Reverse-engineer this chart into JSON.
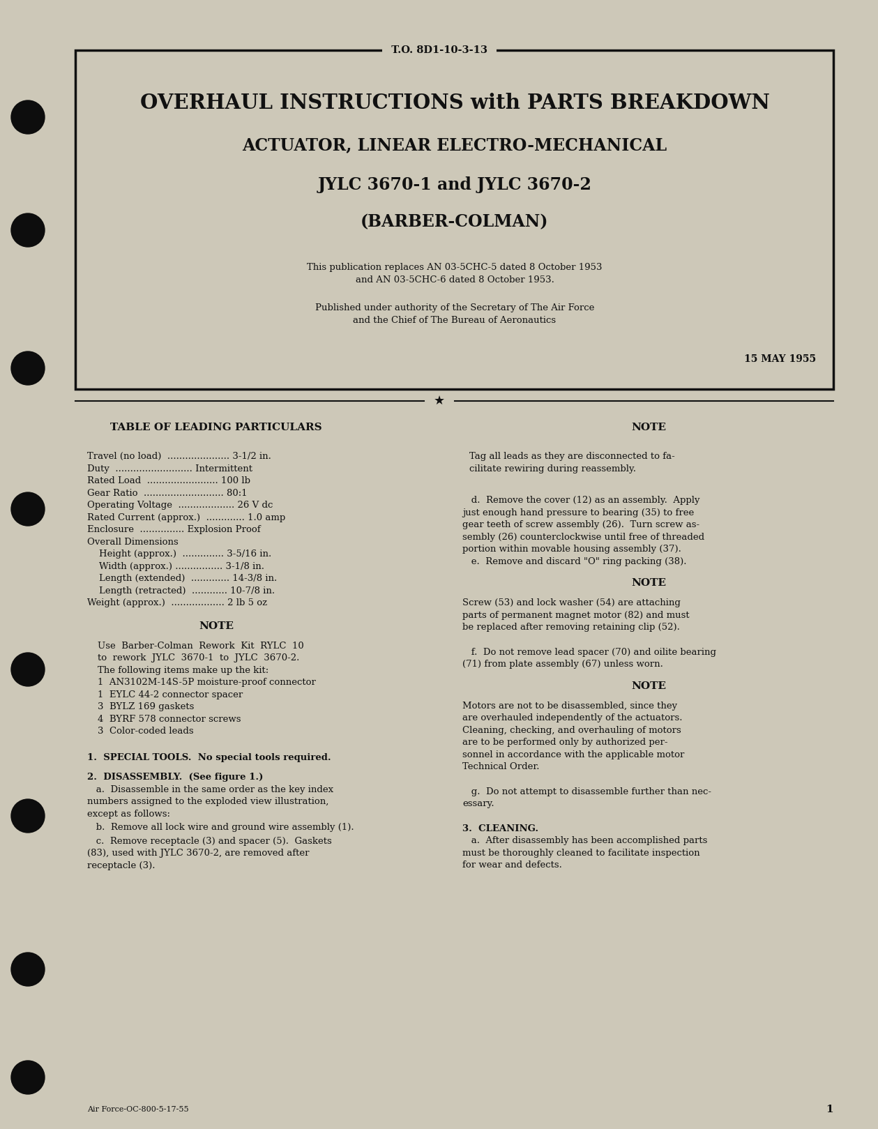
{
  "bg_color": "#cdc8b8",
  "border_color": "#111111",
  "text_color": "#111111",
  "header_label": "T.O. 8D1-10-3-13",
  "title1": "OVERHAUL INSTRUCTIONS with PARTS BREAKDOWN",
  "title2": "ACTUATOR, LINEAR ELECTRO-MECHANICAL",
  "title3": "JYLC 3670-1 and JYLC 3670-2",
  "title4": "(BARBER-COLMAN)",
  "pub_line1": "This publication replaces AN 03-5CHC-5 dated 8 October 1953",
  "pub_line2": "and AN 03-5CHC-6 dated 8 October 1953.",
  "authority_line1": "Published under authority of the Secretary of The Air Force",
  "authority_line2": "and the Chief of The Bureau of Aeronautics",
  "date": "15 MAY 1955",
  "table_heading": "TABLE OF LEADING PARTICULARS",
  "note_heading": "NOTE",
  "particulars": [
    "Travel (no load)  ..................... 3-1/2 in.",
    "Duty  .......................... Intermittent",
    "Rated Load  ........................ 100 lb",
    "Gear Ratio  ........................... 80:1",
    "Operating Voltage  ................... 26 V dc",
    "Rated Current (approx.)  ............. 1.0 amp",
    "Enclosure  ............... Explosion Proof",
    "Overall Dimensions",
    "    Height (approx.)  .............. 3-5/16 in.",
    "    Width (approx.) ................ 3-1/8 in.",
    "    Length (extended)  ............. 14-3/8 in.",
    "    Length (retracted)  ............ 10-7/8 in.",
    "Weight (approx.)  .................. 2 lb 5 oz"
  ],
  "note_left_head": "NOTE",
  "note_left_text": [
    "Use  Barber-Colman  Rework  Kit  RYLC  10",
    "to  rework  JYLC  3670-1  to  JYLC  3670-2.",
    "The following items make up the kit:",
    "1  AN3102M-14S-5P moisture-proof connector",
    "1  EYLC 44-2 connector spacer",
    "3  BYLZ 169 gaskets",
    "4  BYRF 578 connector screws",
    "3  Color-coded leads"
  ],
  "section1": "1.  SPECIAL TOOLS.  No special tools required.",
  "section2_head": "2.  DISASSEMBLY.  (See figure 1.)",
  "section2a_lines": [
    "   a.  Disassemble in the same order as the key index",
    "numbers assigned to the exploded view illustration,",
    "except as follows:"
  ],
  "section2b": "   b.  Remove all lock wire and ground wire assembly (1).",
  "section2c_lines": [
    "   c.  Remove receptacle (3) and spacer (5).  Gaskets",
    "(83), used with JYLC 3670-2, are removed after",
    "receptacle (3)."
  ],
  "right_note1_lines": [
    "Tag all leads as they are disconnected to fa-",
    "cilitate rewiring during reassembly."
  ],
  "right_sect_d_lines": [
    "   d.  Remove the cover (12) as an assembly.  Apply",
    "just enough hand pressure to bearing (35) to free",
    "gear teeth of screw assembly (26).  Turn screw as-",
    "sembly (26) counterclockwise until free of threaded",
    "portion within movable housing assembly (37).",
    "   e.  Remove and discard \"O\" ring packing (38)."
  ],
  "right_note2_head": "NOTE",
  "right_note2_lines": [
    "Screw (53) and lock washer (54) are attaching",
    "parts of permanent magnet motor (82) and must",
    "be replaced after removing retaining clip (52)."
  ],
  "right_sect_f_lines": [
    "   f.  Do not remove lead spacer (70) and oilite bearing",
    "(71) from plate assembly (67) unless worn."
  ],
  "right_note3_head": "NOTE",
  "right_note3_lines": [
    "Motors are not to be disassembled, since they",
    "are overhauled independently of the actuators.",
    "Cleaning, checking, and overhauling of motors",
    "are to be performed only by authorized per-",
    "sonnel in accordance with the applicable motor",
    "Technical Order."
  ],
  "right_sect_g_lines": [
    "   g.  Do not attempt to disassemble further than nec-",
    "essary."
  ],
  "right_sect3_head": "3.  CLEANING.",
  "right_sect3a_lines": [
    "   a.  After disassembly has been accomplished parts",
    "must be thoroughly cleaned to facilitate inspection",
    "for wear and defects."
  ],
  "footer": "Air Force-OC-800-5-17-55",
  "page_num": "1"
}
